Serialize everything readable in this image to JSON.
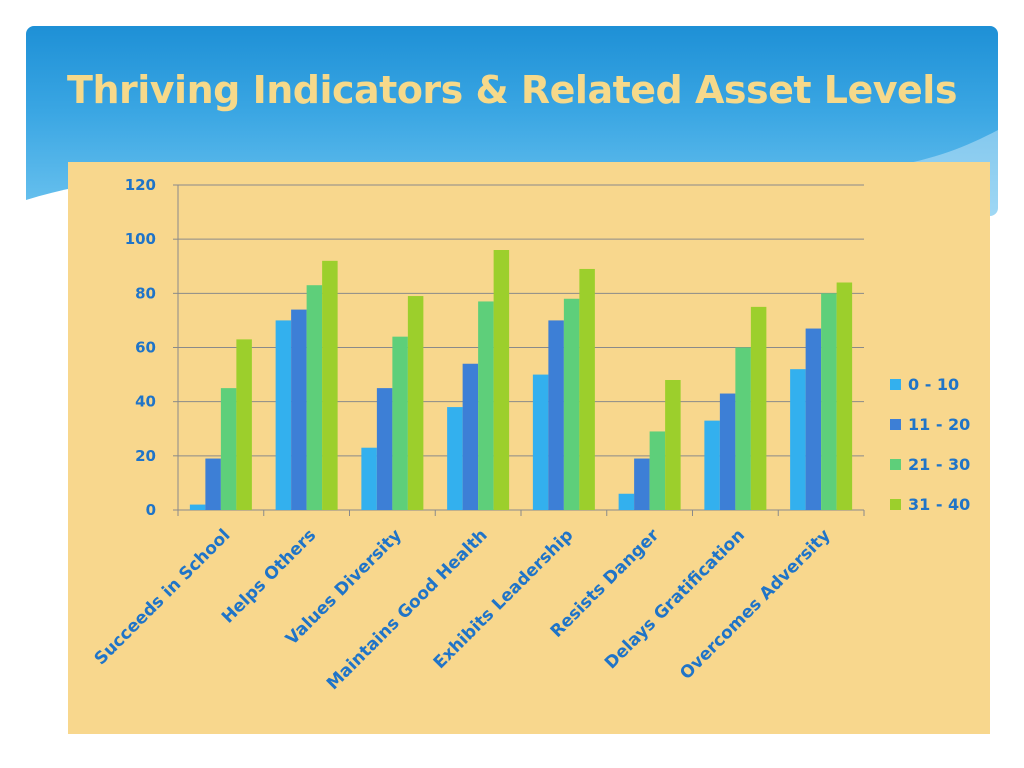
{
  "slide": {
    "title": "Thriving Indicators & Related Asset Levels"
  },
  "colors": {
    "banner": "#2a9be0",
    "title_text": "#f6d98a",
    "chart_background": "#f8d78d",
    "label_text": "#1f74c8",
    "gridline": "#8a8a8a"
  },
  "chart_data": {
    "type": "bar",
    "title": "",
    "xlabel": "",
    "ylabel": "",
    "ylim": [
      0,
      120
    ],
    "yticks": [
      0,
      20,
      40,
      60,
      80,
      100,
      120
    ],
    "grid": true,
    "legend_position": "right",
    "categories": [
      "Succeeds in School",
      "Helps Others",
      "Values Diversity",
      "Maintains Good Health",
      "Exhibits Leadership",
      "Resists Danger",
      "Delays Gratification",
      "Overcomes Adversity"
    ],
    "series": [
      {
        "name": "0 - 10",
        "color": "#33b0ee",
        "values": [
          2,
          70,
          23,
          38,
          50,
          6,
          33,
          52
        ]
      },
      {
        "name": "11 - 20",
        "color": "#3d7fd6",
        "values": [
          19,
          74,
          45,
          54,
          70,
          19,
          43,
          67
        ]
      },
      {
        "name": "21 - 30",
        "color": "#5ecf7a",
        "values": [
          45,
          83,
          64,
          77,
          78,
          29,
          60,
          80
        ]
      },
      {
        "name": "31 - 40",
        "color": "#9ccf2c",
        "values": [
          63,
          92,
          79,
          96,
          89,
          48,
          75,
          84
        ]
      }
    ]
  }
}
